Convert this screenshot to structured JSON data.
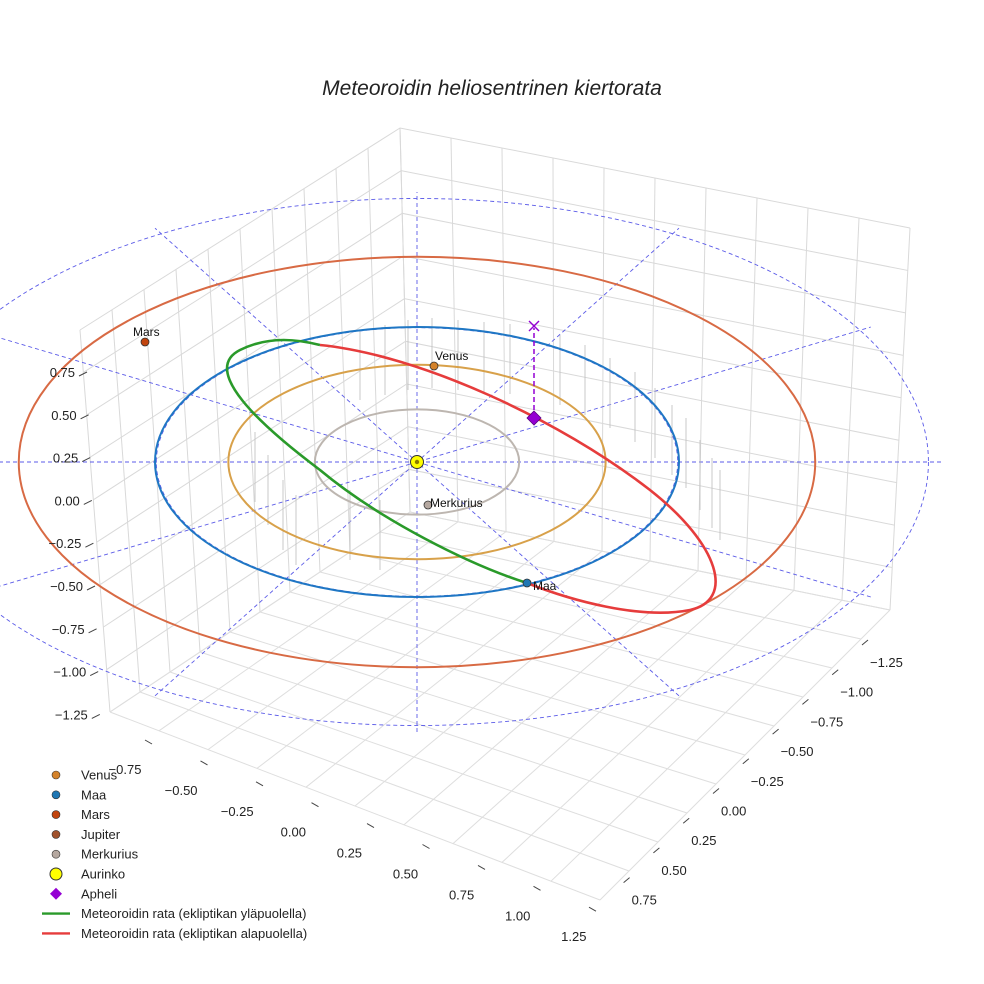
{
  "chart_data": {
    "type": "line",
    "title": "Meteoroidin heliosentrinen kiertorata",
    "xlabel": "",
    "ylabel": "",
    "zlabel": "",
    "x_ticks": [
      "−0.75",
      "−0.50",
      "−0.25",
      "0.00",
      "0.25",
      "0.50",
      "0.75",
      "1.00",
      "1.25"
    ],
    "y_ticks": [
      "−1.25",
      "−1.00",
      "−0.75",
      "−0.50",
      "−0.25",
      "0.00",
      "0.25",
      "0.50",
      "0.75"
    ],
    "z_ticks": [
      "0.75",
      "0.50",
      "0.25",
      "0.00",
      "−0.25",
      "−0.50",
      "−0.75",
      "−1.00",
      "−1.25"
    ],
    "orbits": [
      {
        "name": "Merkurius",
        "a_au": 0.39,
        "color": "#bdb6b0"
      },
      {
        "name": "Venus",
        "a_au": 0.72,
        "color": "#d8a14a"
      },
      {
        "name": "Maa",
        "a_au": 1.0,
        "color": "#1f77c4"
      },
      {
        "name": "Mars",
        "a_au": 1.52,
        "color": "#d86a44"
      }
    ],
    "planet_labels": [
      {
        "name": "Mars",
        "color": "#c1440e"
      },
      {
        "name": "Venus",
        "color": "#d4822a"
      },
      {
        "name": "Merkurius",
        "color": "#b5a8a0"
      },
      {
        "name": "Maa",
        "color": "#1f77b4"
      }
    ],
    "meteoroid_series": [
      {
        "name": "Meteoroidin rata (ekliptikan yläpuolella)",
        "color": "#2a9a2a"
      },
      {
        "name": "Meteoroidin rata (ekliptikan alapuolella)",
        "color": "#e63c3c"
      }
    ],
    "legend": {
      "placement": "bottom-left",
      "items": [
        {
          "label": "Venus",
          "marker": "circle",
          "color": "#d4822a"
        },
        {
          "label": "Maa",
          "marker": "circle",
          "color": "#1f77b4"
        },
        {
          "label": "Mars",
          "marker": "circle",
          "color": "#c1440e"
        },
        {
          "label": "Jupiter",
          "marker": "circle",
          "color": "#a0522d"
        },
        {
          "label": "Merkurius",
          "marker": "circle",
          "color": "#b5a8a0"
        },
        {
          "label": "Aurinko",
          "marker": "circle-large",
          "color": "#ffff00"
        },
        {
          "label": "Apheli",
          "marker": "diamond",
          "color": "#9400d3"
        },
        {
          "label": "Meteoroidin rata (ekliptikan yläpuolella)",
          "marker": "line",
          "color": "#2a9a2a"
        },
        {
          "label": "Meteoroidin rata (ekliptikan alapuolella)",
          "marker": "line",
          "color": "#e63c3c"
        }
      ]
    },
    "aphelion_color": "#9400d3",
    "sun_color": "#ffff00",
    "grid": true
  }
}
